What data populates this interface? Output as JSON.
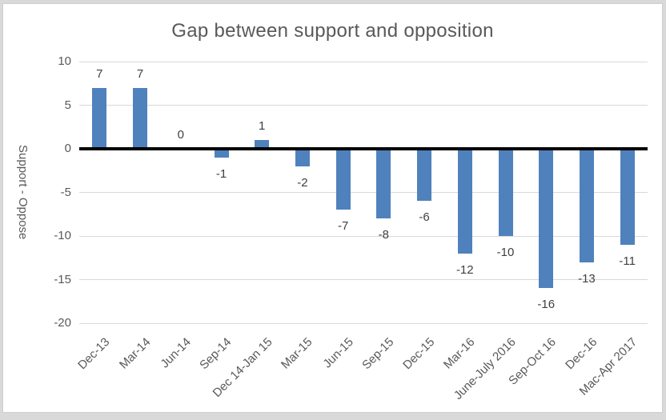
{
  "chart_data": {
    "type": "bar",
    "title": "Gap between support and opposition",
    "xlabel": "",
    "ylabel": "Support - Oppose",
    "categories": [
      "Dec-13",
      "Mar-14",
      "Jun-14",
      "Sep-14",
      "Dec 14-Jan 15",
      "Mar-15",
      "Jun-15",
      "Sep-15",
      "Dec-15",
      "Mar-16",
      "June-July 2016",
      "Sep-Oct 16",
      "Dec-16",
      "Mac-Apr 2017"
    ],
    "values": [
      7,
      7,
      0,
      -1,
      1,
      -2,
      -7,
      -8,
      -6,
      -12,
      -10,
      -16,
      -13,
      -11
    ],
    "data_labels": [
      "7",
      "7",
      "0",
      "-1",
      "1",
      "-2",
      "-7",
      "-8",
      "-6",
      "-12",
      "-10",
      "-16",
      "-13",
      "-11"
    ],
    "y_ticks": [
      10,
      5,
      0,
      -5,
      -10,
      -15,
      -20
    ],
    "ylim": [
      -20,
      10
    ],
    "grid": true,
    "legend_position": "none",
    "x_label_rotation_deg": 45,
    "colors": {
      "bar": "#4f81bd",
      "gridline": "#d9d9d9",
      "zero_axis": "#000000",
      "axis_text": "#595959",
      "data_label_text": "#404040",
      "title_text": "#595959",
      "plot_background": "#ffffff",
      "outer_background": "#d9d9d9"
    }
  }
}
